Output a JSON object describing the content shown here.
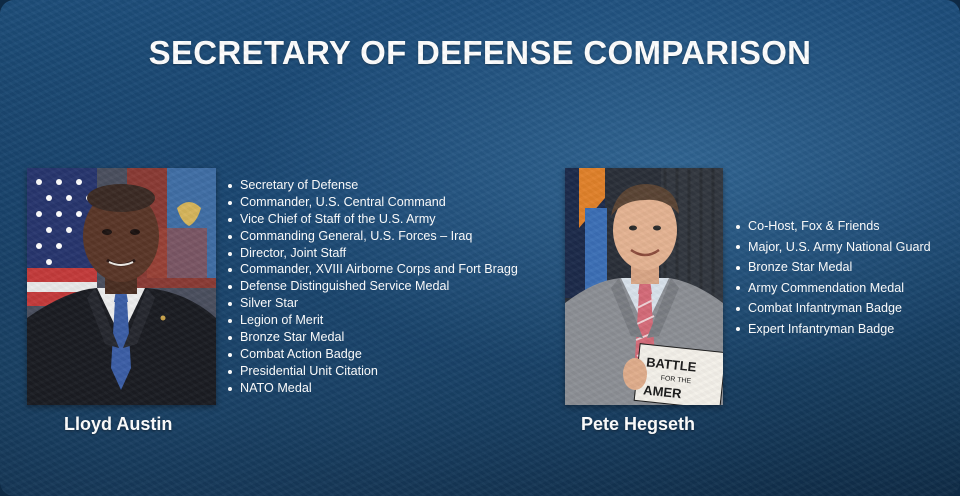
{
  "title": "SECRETARY OF DEFENSE COMPARISON",
  "austin": {
    "name": "Lloyd Austin",
    "credentials": [
      "Secretary of Defense",
      "Commander, U.S. Central Command",
      "Vice Chief of Staff of the U.S. Army",
      "Commanding General, U.S. Forces – Iraq",
      "Director, Joint Staff",
      "Commander, XVIII Airborne Corps and Fort Bragg",
      "Defense Distinguished Service Medal",
      "Silver Star",
      "Legion of Merit",
      "Bronze Star Medal",
      "Combat Action Badge",
      "Presidential Unit Citation",
      "NATO Medal"
    ]
  },
  "hegseth": {
    "name": "Pete Hegseth",
    "credentials": [
      "Co-Host, Fox & Friends",
      "Major, U.S. Army National Guard",
      "Bronze Star Medal",
      "Army Commendation Medal",
      "Combat Infantryman Badge",
      "Expert Infantryman Badge"
    ],
    "book_text": [
      "BATTLE",
      "FOR THE",
      "AMER"
    ]
  },
  "colors": {
    "background": "#163f66",
    "text": "#ffffff"
  }
}
